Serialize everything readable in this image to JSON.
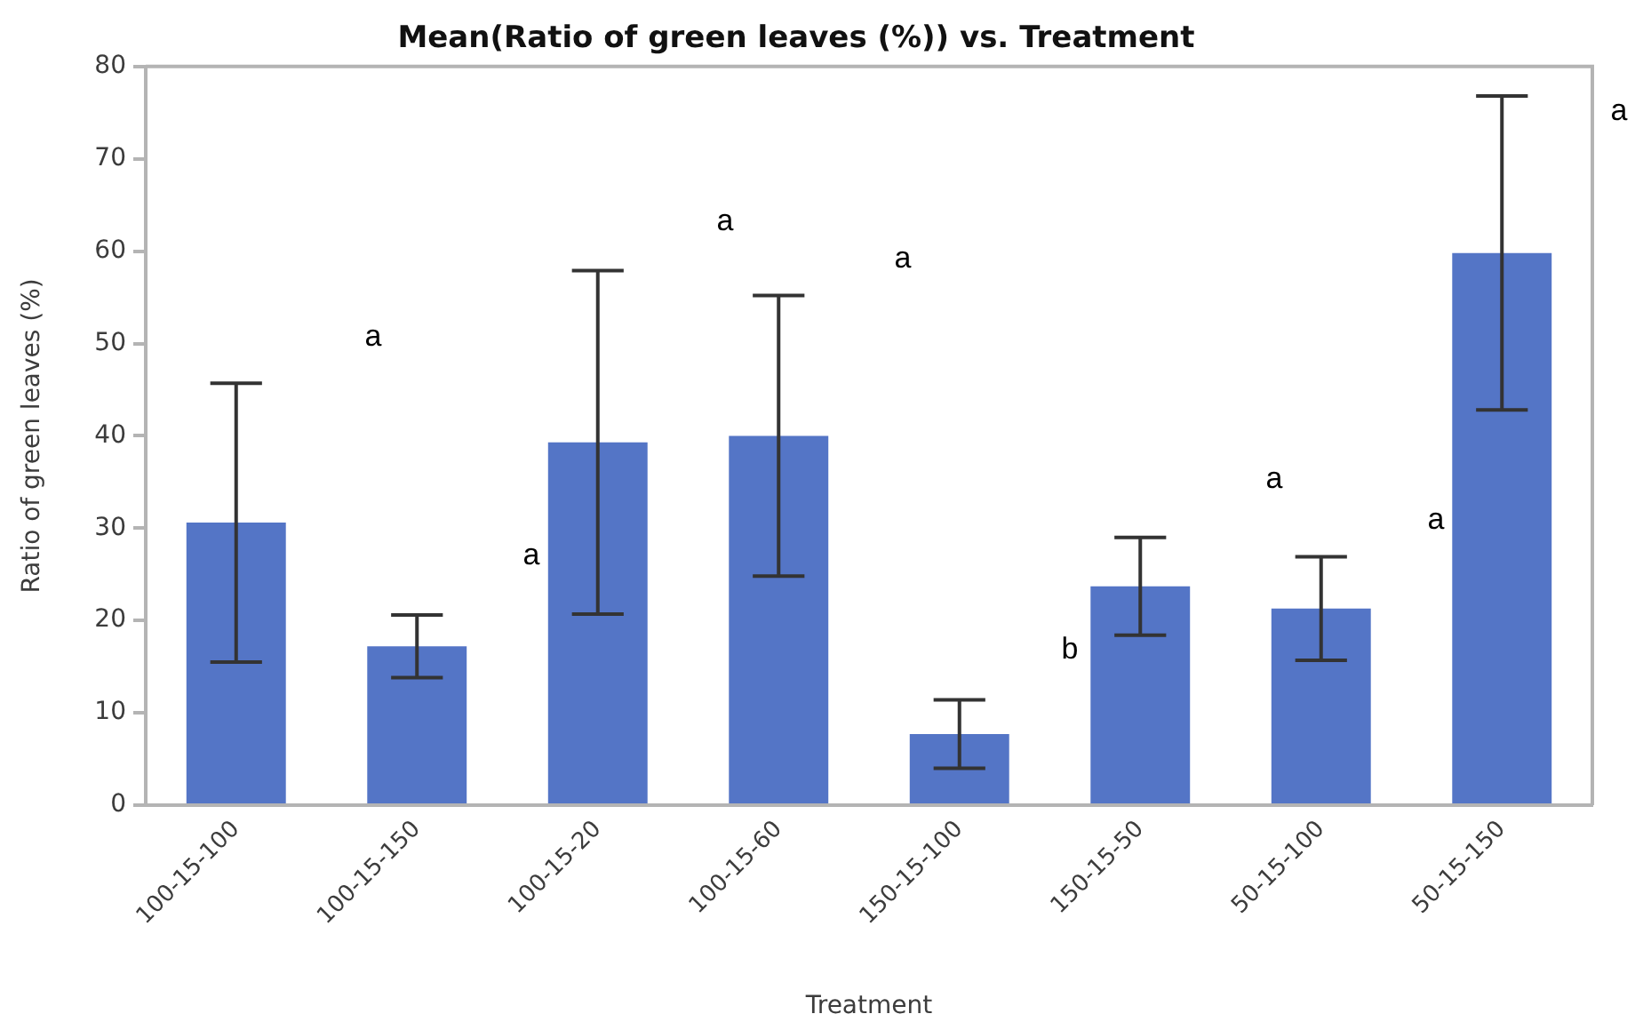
{
  "chart_data": {
    "type": "bar",
    "title": "Mean(Ratio of green leaves (%)) vs. Treatment",
    "xlabel": "Treatment",
    "ylabel": "Ratio of green leaves (%)",
    "categories": [
      "100-15-100",
      "100-15-150",
      "100-15-20",
      "100-15-60",
      "150-15-100",
      "150-15-50",
      "50-15-100",
      "50-15-150"
    ],
    "values": [
      30.6,
      17.2,
      39.3,
      40.0,
      7.7,
      23.7,
      21.3,
      59.8
    ],
    "errors": [
      15.1,
      3.4,
      18.6,
      15.2,
      3.7,
      5.3,
      5.6,
      17.0
    ],
    "color": "#5475c6",
    "ylim": [
      0,
      80
    ],
    "yticks": [
      0,
      10,
      20,
      30,
      40,
      50,
      60,
      70,
      80
    ],
    "grid": false,
    "legend": false,
    "annotations": [
      "a",
      "a",
      "a",
      "a",
      "b",
      "a",
      "a",
      "a"
    ]
  }
}
